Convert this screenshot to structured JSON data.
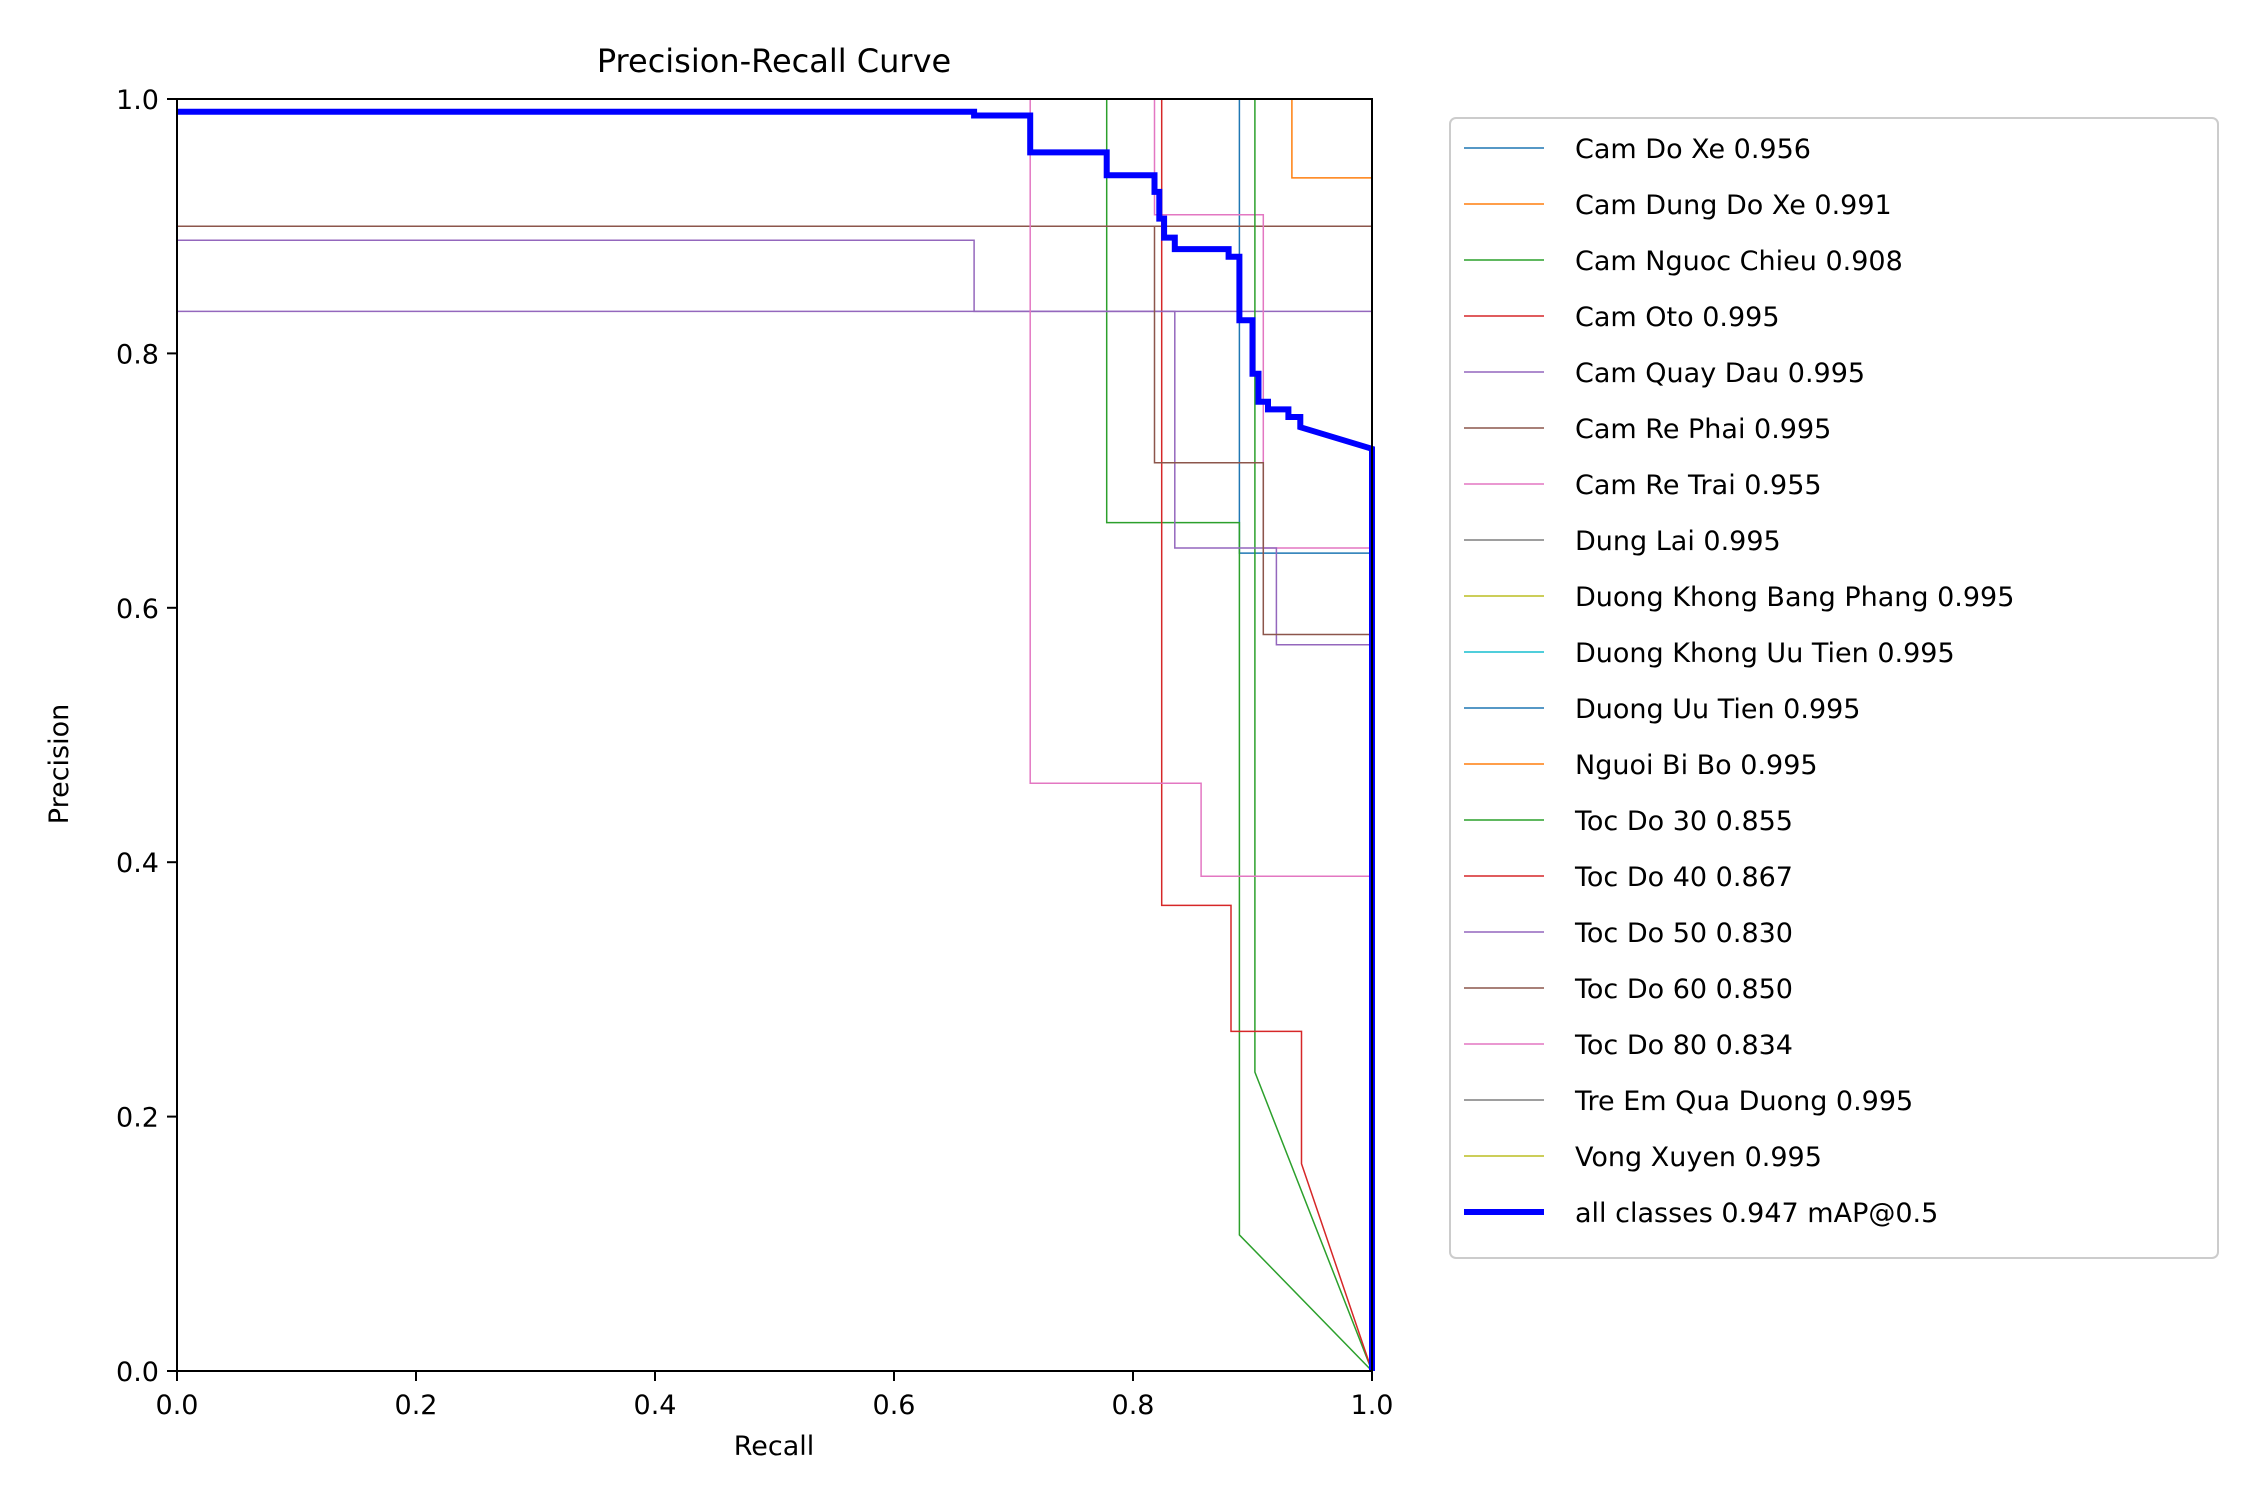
{
  "chart_data": {
    "type": "line",
    "title": "Precision-Recall Curve",
    "xlabel": "Recall",
    "ylabel": "Precision",
    "xlim": [
      0,
      1
    ],
    "ylim": [
      0,
      1
    ],
    "xticks": [
      "0.0",
      "0.2",
      "0.4",
      "0.6",
      "0.8",
      "1.0"
    ],
    "yticks": [
      "0.0",
      "0.2",
      "0.4",
      "0.6",
      "0.8",
      "1.0"
    ],
    "grid": false,
    "legend_position": "outside-right",
    "series": [
      {
        "name": "Cam Do Xe 0.956",
        "color": "#1f77b4",
        "width": 1.5,
        "x": [
          0,
          0.889,
          0.889,
          0.889,
          1.0,
          1.0
        ],
        "y": [
          1,
          1,
          1,
          0.643,
          0.643,
          0
        ]
      },
      {
        "name": "Cam Dung Do Xe 0.991",
        "color": "#ff7f0e",
        "width": 1.5,
        "x": [
          0,
          0.933,
          0.933,
          1.0,
          1.0
        ],
        "y": [
          1,
          1,
          0.938,
          0.938,
          0
        ]
      },
      {
        "name": "Cam Nguoc Chieu 0.908",
        "color": "#2ca02c",
        "width": 1.5,
        "x": [
          0,
          0.778,
          0.778,
          0.889,
          0.889,
          0.889,
          1.0
        ],
        "y": [
          1,
          1,
          0.667,
          0.667,
          0.667,
          0.107,
          0
        ]
      },
      {
        "name": "Cam Oto 0.995",
        "color": "#d62728",
        "width": 1.5,
        "x": [
          0,
          0.822,
          0.822,
          1.0,
          1.0
        ],
        "y": [
          1,
          1,
          1,
          1,
          0
        ]
      },
      {
        "name": "Cam Quay Dau 0.995",
        "color": "#9467bd",
        "width": 1.5,
        "x": [
          0,
          0.667,
          0.667,
          0.833,
          0.833,
          1.0,
          1.0
        ],
        "y": [
          0.889,
          0.889,
          0.833,
          0.833,
          0.833,
          0.833,
          0
        ]
      },
      {
        "name": "Cam Re Phai 0.995",
        "color": "#8c564b",
        "width": 1.5,
        "x": [
          0,
          0.818,
          0.818,
          1.0,
          1.0
        ],
        "y": [
          0.9,
          0.9,
          0.9,
          0.9,
          0
        ]
      },
      {
        "name": "Cam Re Trai 0.955",
        "color": "#e377c2",
        "width": 1.5,
        "x": [
          0,
          0.818,
          0.818,
          0.909,
          0.909,
          1.0,
          1.0
        ],
        "y": [
          1,
          1,
          0.909,
          0.909,
          0.647,
          0.647,
          0
        ]
      },
      {
        "name": "Dung Lai 0.995",
        "color": "#7f7f7f",
        "width": 1.5,
        "x": [
          0,
          1.0,
          1.0
        ],
        "y": [
          1,
          1,
          0
        ]
      },
      {
        "name": "Duong Khong Bang Phang 0.995",
        "color": "#bcbd22",
        "width": 1.5,
        "x": [
          0,
          1.0,
          1.0
        ],
        "y": [
          1,
          1,
          0
        ]
      },
      {
        "name": "Duong Khong Uu Tien 0.995",
        "color": "#17becf",
        "width": 1.5,
        "x": [
          0,
          1.0,
          1.0
        ],
        "y": [
          1,
          1,
          0
        ]
      },
      {
        "name": "Duong Uu Tien 0.995",
        "color": "#1f77b4",
        "width": 1.5,
        "x": [
          0,
          1.0,
          1.0
        ],
        "y": [
          1,
          1,
          0
        ]
      },
      {
        "name": "Nguoi Bi Bo 0.995",
        "color": "#ff7f0e",
        "width": 1.5,
        "x": [
          0,
          1.0,
          1.0
        ],
        "y": [
          1,
          1,
          0
        ]
      },
      {
        "name": "Toc Do 30 0.855",
        "color": "#2ca02c",
        "width": 1.5,
        "x": [
          0,
          0.902,
          0.902,
          1.0
        ],
        "y": [
          1,
          1,
          0.235,
          0
        ]
      },
      {
        "name": "Toc Do 40 0.867",
        "color": "#d62728",
        "width": 1.5,
        "x": [
          0,
          0.824,
          0.824,
          0.882,
          0.882,
          0.941,
          0.941,
          1.0
        ],
        "y": [
          1,
          1,
          0.366,
          0.366,
          0.267,
          0.267,
          0.163,
          0
        ]
      },
      {
        "name": "Toc Do 50 0.830",
        "color": "#9467bd",
        "width": 1.5,
        "x": [
          0,
          0.835,
          0.835,
          0.92,
          0.92,
          1.0,
          1.0
        ],
        "y": [
          0.833,
          0.833,
          0.647,
          0.647,
          0.571,
          0.571,
          0
        ]
      },
      {
        "name": "Toc Do 60 0.850",
        "color": "#8c564b",
        "width": 1.5,
        "x": [
          0,
          0.818,
          0.818,
          0.909,
          0.909,
          1.0,
          1.0
        ],
        "y": [
          0.9,
          0.9,
          0.714,
          0.714,
          0.579,
          0.579,
          0
        ]
      },
      {
        "name": "Toc Do 80 0.834",
        "color": "#e377c2",
        "width": 1.5,
        "x": [
          0,
          0.714,
          0.714,
          0.857,
          0.857,
          1.0,
          1.0
        ],
        "y": [
          1,
          1,
          0.462,
          0.462,
          0.389,
          0.389,
          0
        ]
      },
      {
        "name": "Tre Em Qua Duong 0.995",
        "color": "#7f7f7f",
        "width": 1.5,
        "x": [
          0,
          1.0,
          1.0
        ],
        "y": [
          1,
          1,
          0
        ]
      },
      {
        "name": "Vong Xuyen 0.995",
        "color": "#bcbd22",
        "width": 1.5,
        "x": [
          0,
          1.0,
          1.0
        ],
        "y": [
          1,
          1,
          0
        ]
      },
      {
        "name": "all classes 0.947 mAP@0.5",
        "color": "#0000ff",
        "width": 6,
        "x": [
          0,
          0.667,
          0.667,
          0.714,
          0.714,
          0.778,
          0.778,
          0.818,
          0.818,
          0.822,
          0.822,
          0.826,
          0.826,
          0.835,
          0.835,
          0.88,
          0.88,
          0.889,
          0.889,
          0.9,
          0.9,
          0.905,
          0.905,
          0.913,
          0.913,
          0.93,
          0.93,
          0.94,
          0.94,
          1.0,
          1.0
        ],
        "y": [
          0.99,
          0.99,
          0.987,
          0.987,
          0.958,
          0.958,
          0.94,
          0.94,
          0.927,
          0.927,
          0.906,
          0.906,
          0.891,
          0.891,
          0.882,
          0.882,
          0.876,
          0.876,
          0.826,
          0.826,
          0.784,
          0.784,
          0.762,
          0.762,
          0.756,
          0.756,
          0.75,
          0.75,
          0.742,
          0.725,
          0
        ]
      }
    ]
  }
}
